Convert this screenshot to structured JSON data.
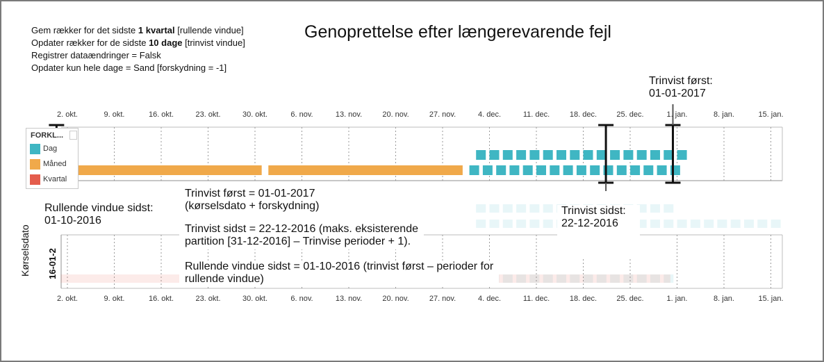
{
  "settings": {
    "line1": {
      "pre": "Gem rækker for det sidste ",
      "bold": "1 kvartal",
      "post": " [rullende vindue]"
    },
    "line2": {
      "pre": "Opdater rækker for de sidste ",
      "bold": "10 dage",
      "post": " [trinvist vindue]"
    },
    "line3": "Registrer dataændringer = Falsk",
    "line4": "Opdater kun hele dage = Sand [forskydning = -1]"
  },
  "title": "Genoprettelse efter længerevarende fejl",
  "axis_ticks": [
    "2. okt.",
    "9. okt.",
    "16. okt.",
    "23. okt.",
    "30. okt.",
    "6. nov.",
    "13. nov.",
    "20. nov.",
    "27. nov.",
    "4. dec.",
    "11. dec.",
    "18. dec.",
    "25. dec.",
    "1. jan.",
    "8. jan.",
    "15. jan."
  ],
  "legend": {
    "title": "FORKL...",
    "items": [
      {
        "label": "Dag",
        "color": "#3fb6c3"
      },
      {
        "label": "Måned",
        "color": "#f0a94a"
      },
      {
        "label": "Kvartal",
        "color": "#e45c4c"
      }
    ]
  },
  "annotations": {
    "trinvist_forst_top": "Trinvist først:\n01-01-2017",
    "rullende_vindue": "Rullende vindue sidst:\n01-10-2016",
    "trinvist_forst_eq": "Trinvist først = 01-01-2017\n(kørselsdato + forskydning)",
    "trinvist_sidst": "Trinvist sidst:\n22-12-2016",
    "trinvist_sidst_eq": "Trinvist sidst = 22-12-2016 (maks. eksisterende\npartition [31-12-2016] – Trinvise perioder + 1).",
    "rullende_eq": "Rullende vindue sidst = 01-10-2016 (trinvist først – perioder for\nrullende vindue)"
  },
  "y_axis": {
    "label": "Kørselsdato",
    "value": "16-01-2"
  },
  "chart_data": {
    "type": "timeline",
    "x_ticks": [
      "2. okt.",
      "9. okt.",
      "16. okt.",
      "23. okt.",
      "30. okt.",
      "6. nov.",
      "13. nov.",
      "20. nov.",
      "27. nov.",
      "4. dec.",
      "11. dec.",
      "18. dec.",
      "25. dec.",
      "1. jan.",
      "8. jan.",
      "15. jan."
    ],
    "legend": [
      "Dag",
      "Måned",
      "Kvartal"
    ],
    "top_panel": {
      "month_partitions": [
        {
          "series": "Måned",
          "start": "2016-10-01",
          "end": "2016-10-31"
        },
        {
          "series": "Måned",
          "start": "2016-11-01",
          "end": "2016-11-30"
        }
      ],
      "day_partitions_row1": {
        "series": "Dag",
        "start": "2016-12-02",
        "end": "2017-01-01"
      },
      "day_partitions_row2": {
        "series": "Dag",
        "start": "2016-12-01",
        "end": "2016-12-31"
      },
      "markers": [
        "2016-10-01",
        "2016-12-22",
        "2017-01-01"
      ]
    },
    "bottom_panel": {
      "day_partitions_row1": {
        "series": "Dag",
        "start": "2016-12-02",
        "end": "2016-12-31"
      },
      "day_partitions_row2": {
        "series": "Dag",
        "start": "2016-12-02",
        "end": "2017-01-16"
      },
      "quarter_partition": {
        "series": "Kvartal",
        "start": "2016-10-01",
        "end": "2016-12-31"
      }
    }
  }
}
